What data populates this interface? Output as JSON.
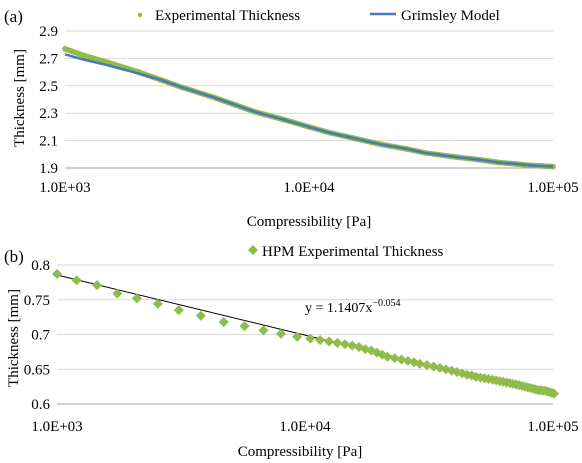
{
  "chart_data": [
    {
      "panel_label": "(a)",
      "type": "line",
      "x_scale": "log",
      "xlabel": "Compressibility [Pa]",
      "ylabel": "Thickness [mm]",
      "xlim": [
        1000,
        100000
      ],
      "ylim": [
        1.9,
        2.9
      ],
      "x_ticks": [
        1000,
        10000,
        100000
      ],
      "x_tick_labels": [
        "1.0E+03",
        "1.0E+04",
        "1.0E+05"
      ],
      "y_ticks": [
        1.9,
        2.1,
        2.3,
        2.5,
        2.7,
        2.9
      ],
      "y_tick_labels": [
        "1.9",
        "2.1",
        "2.3",
        "2.5",
        "2.7",
        "2.9"
      ],
      "grid": "horizontal",
      "legend_position": "top",
      "series": [
        {
          "name": "Experimental Thickness",
          "style": "markers",
          "color": "#8fbc4b",
          "x": [
            1000,
            1200,
            1500,
            2000,
            2500,
            3000,
            4000,
            5000,
            6000,
            8000,
            10000,
            12000,
            15000,
            20000,
            25000,
            30000,
            40000,
            50000,
            60000,
            70000,
            80000,
            90000,
            100000
          ],
          "y": [
            2.77,
            2.72,
            2.67,
            2.6,
            2.54,
            2.49,
            2.42,
            2.36,
            2.31,
            2.25,
            2.2,
            2.16,
            2.12,
            2.07,
            2.04,
            2.01,
            1.98,
            1.96,
            1.94,
            1.93,
            1.92,
            1.915,
            1.91
          ]
        },
        {
          "name": "Grimsley Model",
          "style": "line",
          "color": "#4a78b8",
          "x": [
            1000,
            1200,
            1500,
            2000,
            2500,
            3000,
            4000,
            5000,
            6000,
            8000,
            10000,
            12000,
            15000,
            20000,
            25000,
            30000,
            40000,
            50000,
            60000,
            70000,
            80000,
            90000,
            100000
          ],
          "y": [
            2.73,
            2.69,
            2.65,
            2.59,
            2.54,
            2.49,
            2.42,
            2.36,
            2.31,
            2.25,
            2.2,
            2.16,
            2.12,
            2.07,
            2.04,
            2.01,
            1.98,
            1.96,
            1.94,
            1.93,
            1.92,
            1.915,
            1.91
          ]
        }
      ]
    },
    {
      "panel_label": "(b)",
      "type": "scatter",
      "x_scale": "log",
      "xlabel": "Compressibility [Pa]",
      "ylabel": "Thickness [mm]",
      "xlim": [
        1000,
        100000
      ],
      "ylim": [
        0.6,
        0.8
      ],
      "x_ticks": [
        1000,
        10000,
        100000
      ],
      "x_tick_labels": [
        "1.0E+03",
        "1.0E+04",
        "1.0E+05"
      ],
      "y_ticks": [
        0.6,
        0.65,
        0.7,
        0.75,
        0.8
      ],
      "y_tick_labels": [
        "0.6",
        "0.65",
        "0.7",
        "0.75",
        "0.8"
      ],
      "grid": "horizontal",
      "legend_position": "top",
      "annotation": {
        "base": "y = 1.1407x",
        "exponent": "−0.054"
      },
      "trendline": {
        "coef": 1.1407,
        "exponent": -0.054,
        "color": "#000000"
      },
      "series": [
        {
          "name": "HPM Experimental Thickness",
          "style": "diamond",
          "color": "#8fbc4b",
          "x": [
            1000,
            1200,
            1450,
            1750,
            2100,
            2550,
            3100,
            3800,
            4700,
            5700,
            6800,
            8000,
            9300,
            10500,
            11500,
            12500,
            13500,
            14500,
            15500,
            16500,
            17500,
            18500,
            19500,
            20500,
            21500,
            23000,
            24500,
            26000,
            27500,
            29000,
            31000,
            33000,
            35000,
            37000,
            39000,
            41000,
            43000,
            45000,
            47000,
            49000,
            51000,
            53000,
            55000,
            57000,
            59000,
            61000,
            63000,
            65000,
            67000,
            69000,
            71000,
            73000,
            75000,
            77000,
            79000,
            81000,
            83000,
            85000,
            87000,
            89000,
            91000,
            93000,
            95000,
            97000,
            99000,
            101000
          ],
          "y": [
            0.787,
            0.778,
            0.771,
            0.759,
            0.752,
            0.744,
            0.735,
            0.727,
            0.718,
            0.712,
            0.706,
            0.701,
            0.697,
            0.694,
            0.692,
            0.69,
            0.688,
            0.686,
            0.684,
            0.682,
            0.679,
            0.677,
            0.674,
            0.671,
            0.668,
            0.666,
            0.664,
            0.662,
            0.66,
            0.658,
            0.656,
            0.654,
            0.652,
            0.65,
            0.648,
            0.646,
            0.644,
            0.642,
            0.641,
            0.639,
            0.638,
            0.637,
            0.636,
            0.635,
            0.634,
            0.633,
            0.632,
            0.631,
            0.63,
            0.629,
            0.628,
            0.627,
            0.626,
            0.625,
            0.624,
            0.623,
            0.622,
            0.621,
            0.62,
            0.62,
            0.619,
            0.619,
            0.618,
            0.617,
            0.616,
            0.615
          ]
        }
      ]
    }
  ]
}
